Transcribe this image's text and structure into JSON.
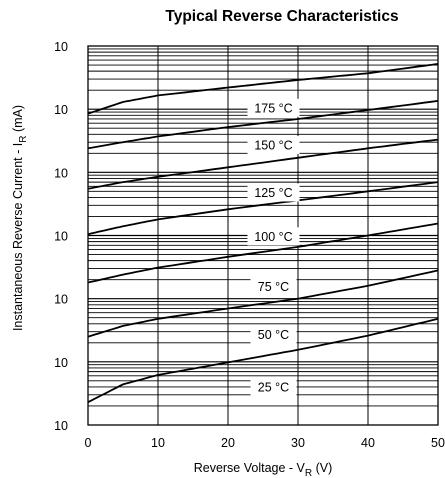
{
  "chart_data": {
    "type": "line",
    "title": "Typical Reverse Characteristics",
    "xlabel": {
      "main": "Reverse Voltage - V",
      "sub": "R",
      "tail": " (V)"
    },
    "ylabel": {
      "main": "Instantaneous Reverse Current - I",
      "sub": "R",
      "tail": " (mA)"
    },
    "xlim": [
      0,
      50
    ],
    "ylim": [
      0.001,
      1000
    ],
    "yscale": "log",
    "grid": true,
    "xticks": [
      "0",
      "10",
      "20",
      "30",
      "40",
      "50"
    ],
    "yticks": [
      {
        "base": "10",
        "exp": "3"
      },
      {
        "base": "10",
        "exp": "2"
      },
      {
        "base": "10",
        "exp": "1"
      },
      {
        "base": "10",
        "exp": "0"
      },
      {
        "base": "10",
        "exp": "-1"
      },
      {
        "base": "10",
        "exp": "-2"
      },
      {
        "base": "10",
        "exp": "-3"
      }
    ],
    "series": [
      {
        "name": "175 °C",
        "x": [
          0,
          5,
          10,
          20,
          30,
          40,
          50
        ],
        "y": [
          85,
          130,
          165,
          220,
          290,
          370,
          520
        ]
      },
      {
        "name": "150 °C",
        "x": [
          0,
          5,
          10,
          20,
          30,
          40,
          50
        ],
        "y": [
          24,
          30,
          37,
          52,
          70,
          97,
          135
        ]
      },
      {
        "name": "125 °C",
        "x": [
          0,
          5,
          10,
          20,
          30,
          40,
          50
        ],
        "y": [
          5.5,
          7,
          8.5,
          12,
          17,
          24,
          33
        ]
      },
      {
        "name": "100 °C",
        "x": [
          0,
          5,
          10,
          20,
          30,
          40,
          50
        ],
        "y": [
          1.05,
          1.4,
          1.8,
          2.6,
          3.6,
          5,
          7
        ]
      },
      {
        "name": "75 °C",
        "x": [
          0,
          5,
          10,
          20,
          30,
          40,
          50
        ],
        "y": [
          0.18,
          0.24,
          0.31,
          0.46,
          0.66,
          1.0,
          1.55
        ]
      },
      {
        "name": "50 °C",
        "x": [
          0,
          5,
          10,
          20,
          30,
          40,
          50
        ],
        "y": [
          0.025,
          0.037,
          0.048,
          0.07,
          0.1,
          0.16,
          0.28
        ]
      },
      {
        "name": "25 °C",
        "x": [
          0,
          5,
          10,
          20,
          30,
          40,
          50
        ],
        "y": [
          0.0023,
          0.0044,
          0.0062,
          0.0098,
          0.0155,
          0.026,
          0.048
        ]
      }
    ],
    "labels": [
      {
        "text": "175 °C",
        "x": 26.5,
        "y": 105
      },
      {
        "text": "150 °C",
        "x": 26.5,
        "y": 27
      },
      {
        "text": "125 °C",
        "x": 26.5,
        "y": 4.8
      },
      {
        "text": "100 °C",
        "x": 26.5,
        "y": 0.97
      },
      {
        "text": "75 °C",
        "x": 26.5,
        "y": 0.155
      },
      {
        "text": "50 °C",
        "x": 26.5,
        "y": 0.027
      },
      {
        "text": "25 °C",
        "x": 26.5,
        "y": 0.004
      }
    ]
  }
}
